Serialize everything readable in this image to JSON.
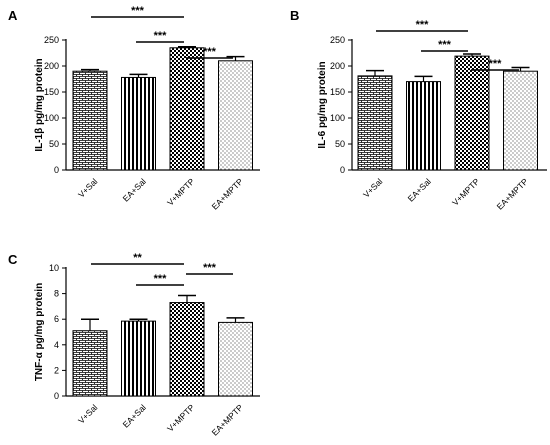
{
  "chart_data": [
    {
      "type": "bar",
      "panel": "A",
      "categories": [
        "V+Sal",
        "EA+Sal",
        "V+MPTP",
        "EA+MPTP"
      ],
      "values": [
        190,
        178,
        235,
        210
      ],
      "errors": [
        3,
        6,
        2,
        8
      ],
      "patterns": [
        "brick",
        "vertical",
        "checker",
        "dots"
      ],
      "ylabel": "IL-1β pg/mg protein",
      "ylim": [
        0,
        250
      ],
      "yticks": [
        0,
        50,
        100,
        150,
        200,
        250
      ],
      "grid": false,
      "significance": [
        {
          "from": 0,
          "to": 2,
          "label": "***"
        },
        {
          "from": 1,
          "to": 2,
          "label": "***"
        },
        {
          "from": 2,
          "to": 3,
          "label": "***"
        }
      ]
    },
    {
      "type": "bar",
      "panel": "B",
      "categories": [
        "V+Sal",
        "EA+Sal",
        "V+MPTP",
        "EA+MPTP"
      ],
      "values": [
        181,
        170,
        219,
        190
      ],
      "errors": [
        10,
        10,
        4,
        7
      ],
      "patterns": [
        "brick",
        "vertical",
        "checker",
        "dots"
      ],
      "ylabel": "IL-6 pg/mg protein",
      "ylim": [
        0,
        250
      ],
      "yticks": [
        0,
        50,
        100,
        150,
        200,
        250
      ],
      "grid": false,
      "significance": [
        {
          "from": 0,
          "to": 2,
          "label": "***"
        },
        {
          "from": 1,
          "to": 2,
          "label": "***"
        },
        {
          "from": 2,
          "to": 3,
          "label": "***"
        }
      ]
    },
    {
      "type": "bar",
      "panel": "C",
      "categories": [
        "V+Sal",
        "EA+Sal",
        "V+MPTP",
        "EA+MPTP"
      ],
      "values": [
        5.1,
        5.85,
        7.3,
        5.75
      ],
      "errors": [
        0.9,
        0.15,
        0.55,
        0.35
      ],
      "patterns": [
        "brick",
        "vertical",
        "checker",
        "dots"
      ],
      "ylabel": "TNF-α pg/mg protein",
      "ylim": [
        0,
        10
      ],
      "yticks": [
        0,
        2,
        4,
        6,
        8,
        10
      ],
      "grid": false,
      "significance": [
        {
          "from": 0,
          "to": 2,
          "label": "**"
        },
        {
          "from": 1,
          "to": 2,
          "label": "***"
        },
        {
          "from": 2,
          "to": 3,
          "label": "***"
        }
      ]
    }
  ],
  "colors": {
    "ink": "#000000",
    "background": "#ffffff"
  }
}
